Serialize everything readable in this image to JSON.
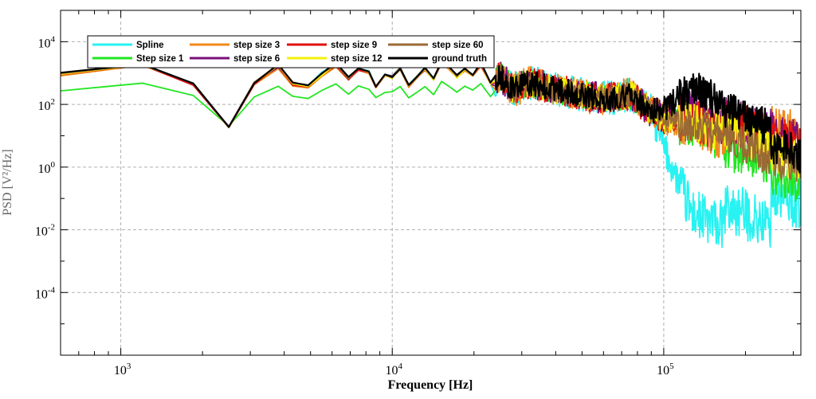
{
  "chart_data": {
    "type": "line",
    "title": "",
    "xlabel": "Frequency [Hz]",
    "ylabel": "PSD [V²/Hz]",
    "xscale": "log",
    "yscale": "log",
    "xlim": [
      600,
      320000
    ],
    "ylim": [
      1e-06,
      100000.0
    ],
    "grid": true,
    "legend_position": "top-left",
    "x_ticks": [
      {
        "value": 1000,
        "base": "10",
        "exp": "3"
      },
      {
        "value": 10000,
        "base": "10",
        "exp": "4"
      },
      {
        "value": 100000,
        "base": "10",
        "exp": "5"
      }
    ],
    "y_ticks": [
      {
        "value": 0.0001,
        "base": "10",
        "exp": "-4"
      },
      {
        "value": 0.01,
        "base": "10",
        "exp": "-2"
      },
      {
        "value": 1,
        "base": "10",
        "exp": "0"
      },
      {
        "value": 100,
        "base": "10",
        "exp": "2"
      },
      {
        "value": 10000,
        "base": "10",
        "exp": "4"
      }
    ],
    "series": [
      {
        "name": "Spline",
        "color": "#29f2f2",
        "low_f_offset": 0.0,
        "low_f_scale": 1.0,
        "hf_level": [
          -2.8,
          -2.2,
          -1.2
        ],
        "jitter": 0.55
      },
      {
        "name": "Step size 1",
        "color": "#22e622",
        "low_f_offset": -0.45,
        "low_f_scale": 0.65,
        "hf_level": [
          0.0,
          -0.3,
          -0.5
        ],
        "jitter": 0.45
      },
      {
        "name": "step size 3",
        "color": "#f08a1c",
        "low_f_offset": -0.08,
        "low_f_scale": 1.0,
        "hf_level": [
          0.2,
          0.5,
          0.9
        ],
        "jitter": 0.55
      },
      {
        "name": "step size 6",
        "color": "#7a0f7a",
        "low_f_offset": -0.03,
        "low_f_scale": 1.0,
        "hf_level": [
          0.4,
          0.6,
          0.8
        ],
        "jitter": 0.5
      },
      {
        "name": "step size 9",
        "color": "#e01010",
        "low_f_offset": -0.05,
        "low_f_scale": 1.0,
        "hf_level": [
          0.3,
          0.5,
          0.6
        ],
        "jitter": 0.5
      },
      {
        "name": "step size 12",
        "color": "#f2f20a",
        "low_f_offset": -0.04,
        "low_f_scale": 1.0,
        "hf_level": [
          0.2,
          0.3,
          0.2
        ],
        "jitter": 0.45
      },
      {
        "name": "step size 60",
        "color": "#9a6a35",
        "low_f_offset": -0.02,
        "low_f_scale": 1.0,
        "hf_level": [
          0.1,
          0.0,
          0.0
        ],
        "jitter": 0.4
      },
      {
        "name": "ground truth",
        "color": "#000000",
        "low_f_offset": 0.0,
        "low_f_scale": 1.0,
        "hf_level": [
          1.2,
          0.9,
          0.4
        ],
        "jitter": 0.4
      }
    ],
    "anchor_points": [
      [
        600,
        1000
      ],
      [
        1200,
        2000
      ],
      [
        1850,
        500
      ],
      [
        2500,
        20
      ],
      [
        3100,
        500
      ],
      [
        3800,
        1800
      ],
      [
        4300,
        500
      ],
      [
        4900,
        400
      ],
      [
        5500,
        1000
      ],
      [
        6200,
        2000
      ],
      [
        6900,
        700
      ],
      [
        7500,
        1500
      ],
      [
        8200,
        1200
      ],
      [
        8700,
        400
      ],
      [
        9400,
        900
      ],
      [
        10000,
        800
      ],
      [
        10700,
        1500
      ],
      [
        11500,
        400
      ],
      [
        12300,
        800
      ],
      [
        13200,
        1400
      ],
      [
        14200,
        700
      ],
      [
        15200,
        2500
      ],
      [
        16200,
        1700
      ],
      [
        17300,
        800
      ],
      [
        18500,
        1500
      ],
      [
        19800,
        900
      ],
      [
        21200,
        2100
      ],
      [
        23000,
        500
      ],
      [
        25000,
        800
      ],
      [
        28000,
        300
      ],
      [
        32000,
        500
      ],
      [
        40000,
        300
      ],
      [
        50000,
        200
      ],
      [
        60000,
        150
      ],
      [
        75000,
        200
      ],
      [
        100000,
        30
      ],
      [
        130000,
        20
      ],
      [
        150000,
        10
      ],
      [
        200000,
        5
      ],
      [
        250000,
        2
      ],
      [
        320000,
        1
      ]
    ]
  }
}
